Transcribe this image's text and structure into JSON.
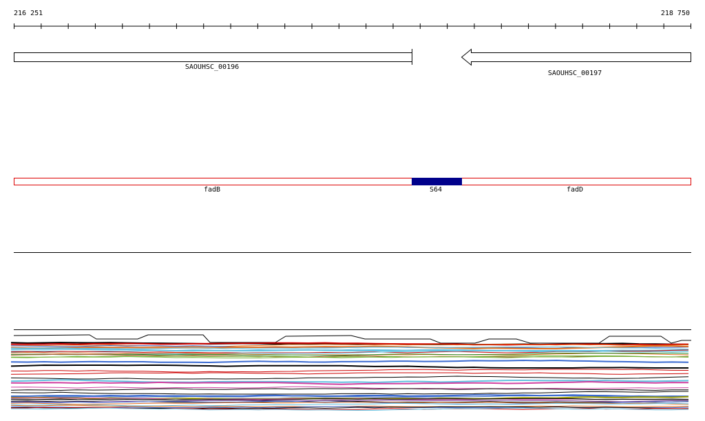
{
  "ruler": {
    "start": "216 251",
    "end": "218 750"
  },
  "genes": [
    {
      "label": "SAOUHSC_00196"
    },
    {
      "label": "SAOUHSC_00197"
    }
  ],
  "features": [
    {
      "label": "fadB"
    },
    {
      "label": "S64"
    },
    {
      "label": "fadD"
    }
  ]
}
